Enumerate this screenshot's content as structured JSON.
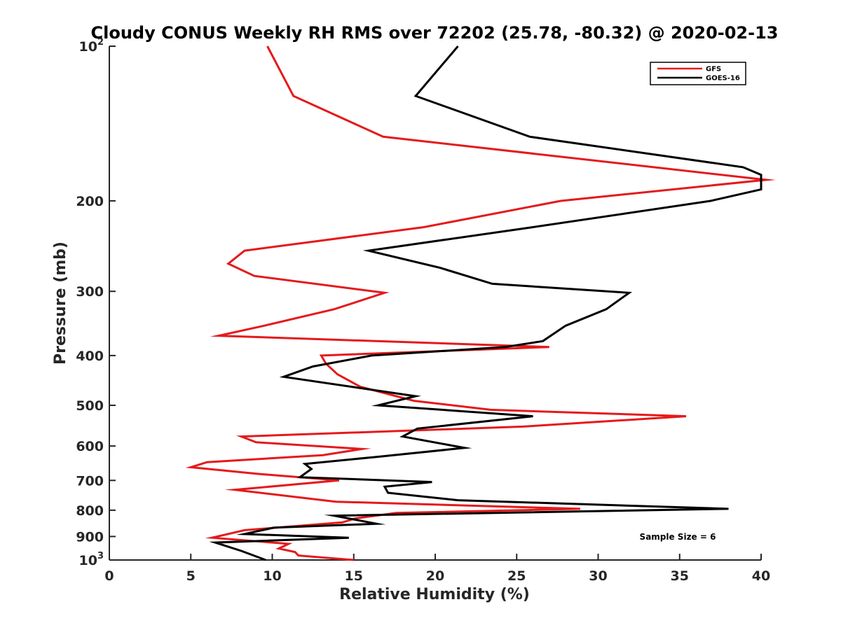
{
  "chart_data": {
    "type": "line",
    "title": "Cloudy CONUS Weekly RH RMS over 72202 (25.78, -80.32) @ 2020-02-13",
    "xlabel": "Relative Humidity (%)",
    "ylabel": "Pressure (mb)",
    "xlim": [
      0,
      40
    ],
    "ylim": [
      1000,
      100
    ],
    "y_scale": "log",
    "y_reversed": true,
    "grid": false,
    "legend_position": "top-right",
    "annotation": "Sample Size = 6",
    "x_ticks": [
      "0",
      "5",
      "10",
      "15",
      "20",
      "25",
      "30",
      "35",
      "40"
    ],
    "y_ticks": [
      {
        "value": 100,
        "base": "10",
        "exp": "2"
      },
      {
        "value": 200,
        "base": "200",
        "exp": ""
      },
      {
        "value": 300,
        "base": "300",
        "exp": ""
      },
      {
        "value": 400,
        "base": "400",
        "exp": ""
      },
      {
        "value": 500,
        "base": "500",
        "exp": ""
      },
      {
        "value": 600,
        "base": "600",
        "exp": ""
      },
      {
        "value": 700,
        "base": "700",
        "exp": ""
      },
      {
        "value": 800,
        "base": "800",
        "exp": ""
      },
      {
        "value": 900,
        "base": "900",
        "exp": ""
      },
      {
        "value": 1000,
        "base": "10",
        "exp": "3"
      }
    ],
    "series": [
      {
        "name": "GFS",
        "color": "#e41a1c",
        "points": [
          [
            9.7,
            100
          ],
          [
            11.3,
            125
          ],
          [
            16.8,
            150
          ],
          [
            40.3,
            182
          ],
          [
            27.7,
            200
          ],
          [
            19.3,
            225
          ],
          [
            8.3,
            250
          ],
          [
            7.3,
            265
          ],
          [
            8.9,
            280
          ],
          [
            16.9,
            302
          ],
          [
            13.8,
            325
          ],
          [
            9.5,
            350
          ],
          [
            6.7,
            366
          ],
          [
            27.0,
            385
          ],
          [
            13.0,
            400
          ],
          [
            13.3,
            415
          ],
          [
            14.0,
            435
          ],
          [
            15.4,
            460
          ],
          [
            18.7,
            490
          ],
          [
            23.4,
            510
          ],
          [
            35.4,
            525
          ],
          [
            25.4,
            550
          ],
          [
            8.1,
            575
          ],
          [
            9.0,
            590
          ],
          [
            15.5,
            608
          ],
          [
            13.1,
            625
          ],
          [
            6.0,
            645
          ],
          [
            5.0,
            660
          ],
          [
            9.2,
            680
          ],
          [
            14.1,
            700
          ],
          [
            7.7,
            730
          ],
          [
            13.9,
            770
          ],
          [
            28.9,
            795
          ],
          [
            17.6,
            810
          ],
          [
            15.1,
            830
          ],
          [
            14.3,
            845
          ],
          [
            8.3,
            875
          ],
          [
            6.3,
            905
          ],
          [
            11.0,
            930
          ],
          [
            10.4,
            950
          ],
          [
            11.4,
            965
          ],
          [
            11.6,
            980
          ],
          [
            15.0,
            1000
          ]
        ]
      },
      {
        "name": "GOES-16",
        "color": "#000000",
        "points": [
          [
            21.4,
            100
          ],
          [
            18.8,
            125
          ],
          [
            25.8,
            150
          ],
          [
            38.9,
            172
          ],
          [
            40.0,
            178
          ],
          [
            40.0,
            190
          ],
          [
            36.9,
            200
          ],
          [
            26.0,
            225
          ],
          [
            15.9,
            250
          ],
          [
            20.3,
            270
          ],
          [
            23.5,
            290
          ],
          [
            31.9,
            302
          ],
          [
            30.5,
            325
          ],
          [
            28.0,
            350
          ],
          [
            26.6,
            375
          ],
          [
            24.3,
            385
          ],
          [
            16.1,
            400
          ],
          [
            12.5,
            420
          ],
          [
            10.7,
            440
          ],
          [
            18.8,
            480
          ],
          [
            16.5,
            500
          ],
          [
            26.0,
            525
          ],
          [
            18.9,
            555
          ],
          [
            18.0,
            575
          ],
          [
            21.8,
            605
          ],
          [
            16.4,
            630
          ],
          [
            12.0,
            650
          ],
          [
            12.4,
            665
          ],
          [
            11.7,
            690
          ],
          [
            19.8,
            705
          ],
          [
            16.9,
            720
          ],
          [
            17.1,
            740
          ],
          [
            21.4,
            765
          ],
          [
            38.0,
            795
          ],
          [
            13.8,
            820
          ],
          [
            16.4,
            850
          ],
          [
            10.1,
            865
          ],
          [
            8.3,
            890
          ],
          [
            14.7,
            905
          ],
          [
            6.5,
            925
          ],
          [
            8.1,
            960
          ],
          [
            9.6,
            1000
          ]
        ]
      }
    ]
  }
}
